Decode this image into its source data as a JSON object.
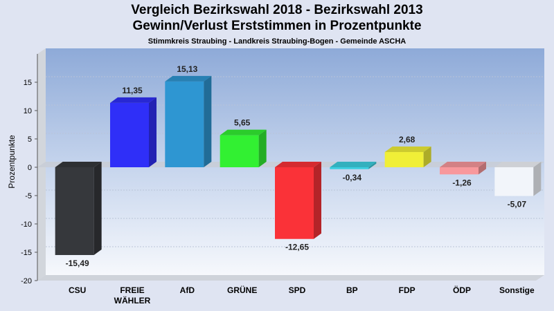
{
  "header": {
    "title_line1": "Vergleich Bezirkswahl 2018 - Bezirkswahl 2013",
    "title_line2": "Gewinn/Verlust Erststimmen in Prozentpunkte",
    "subtitle": "Stimmkreis Straubing - Landkreis Straubing-Bogen - Gemeinde ASCHA"
  },
  "chart_data": {
    "type": "bar",
    "title": "Vergleich Bezirkswahl 2018 - Bezirkswahl 2013 / Gewinn/Verlust Erststimmen in Prozentpunkte",
    "subtitle": "Stimmkreis Straubing - Landkreis Straubing-Bogen - Gemeinde ASCHA",
    "xlabel": "",
    "ylabel": "Prozentpunkte",
    "ylim": [
      -20,
      20
    ],
    "yticks": [
      -20,
      -15,
      -10,
      -5,
      0,
      5,
      10,
      15
    ],
    "grid": true,
    "categories": [
      [
        "CSU"
      ],
      [
        "FREIE",
        "WÄHLER"
      ],
      [
        "AfD"
      ],
      [
        "GRÜNE"
      ],
      [
        "SPD"
      ],
      [
        "BP"
      ],
      [
        "FDP"
      ],
      [
        "ÖDP"
      ],
      [
        "Sonstige"
      ]
    ],
    "values": [
      -15.49,
      11.35,
      15.13,
      5.65,
      -12.65,
      -0.34,
      2.68,
      -1.26,
      -5.07
    ],
    "value_labels": [
      "-15,49",
      "11,35",
      "15,13",
      "5,65",
      "-12,65",
      "-0,34",
      "2,68",
      "-1,26",
      "-5,07"
    ],
    "colors": [
      "#36383c",
      "#2f2ff8",
      "#2e96d2",
      "#32f032",
      "#fa3238",
      "#3ccfe0",
      "#f0ef37",
      "#f8989c",
      "#f2f5fa"
    ]
  }
}
